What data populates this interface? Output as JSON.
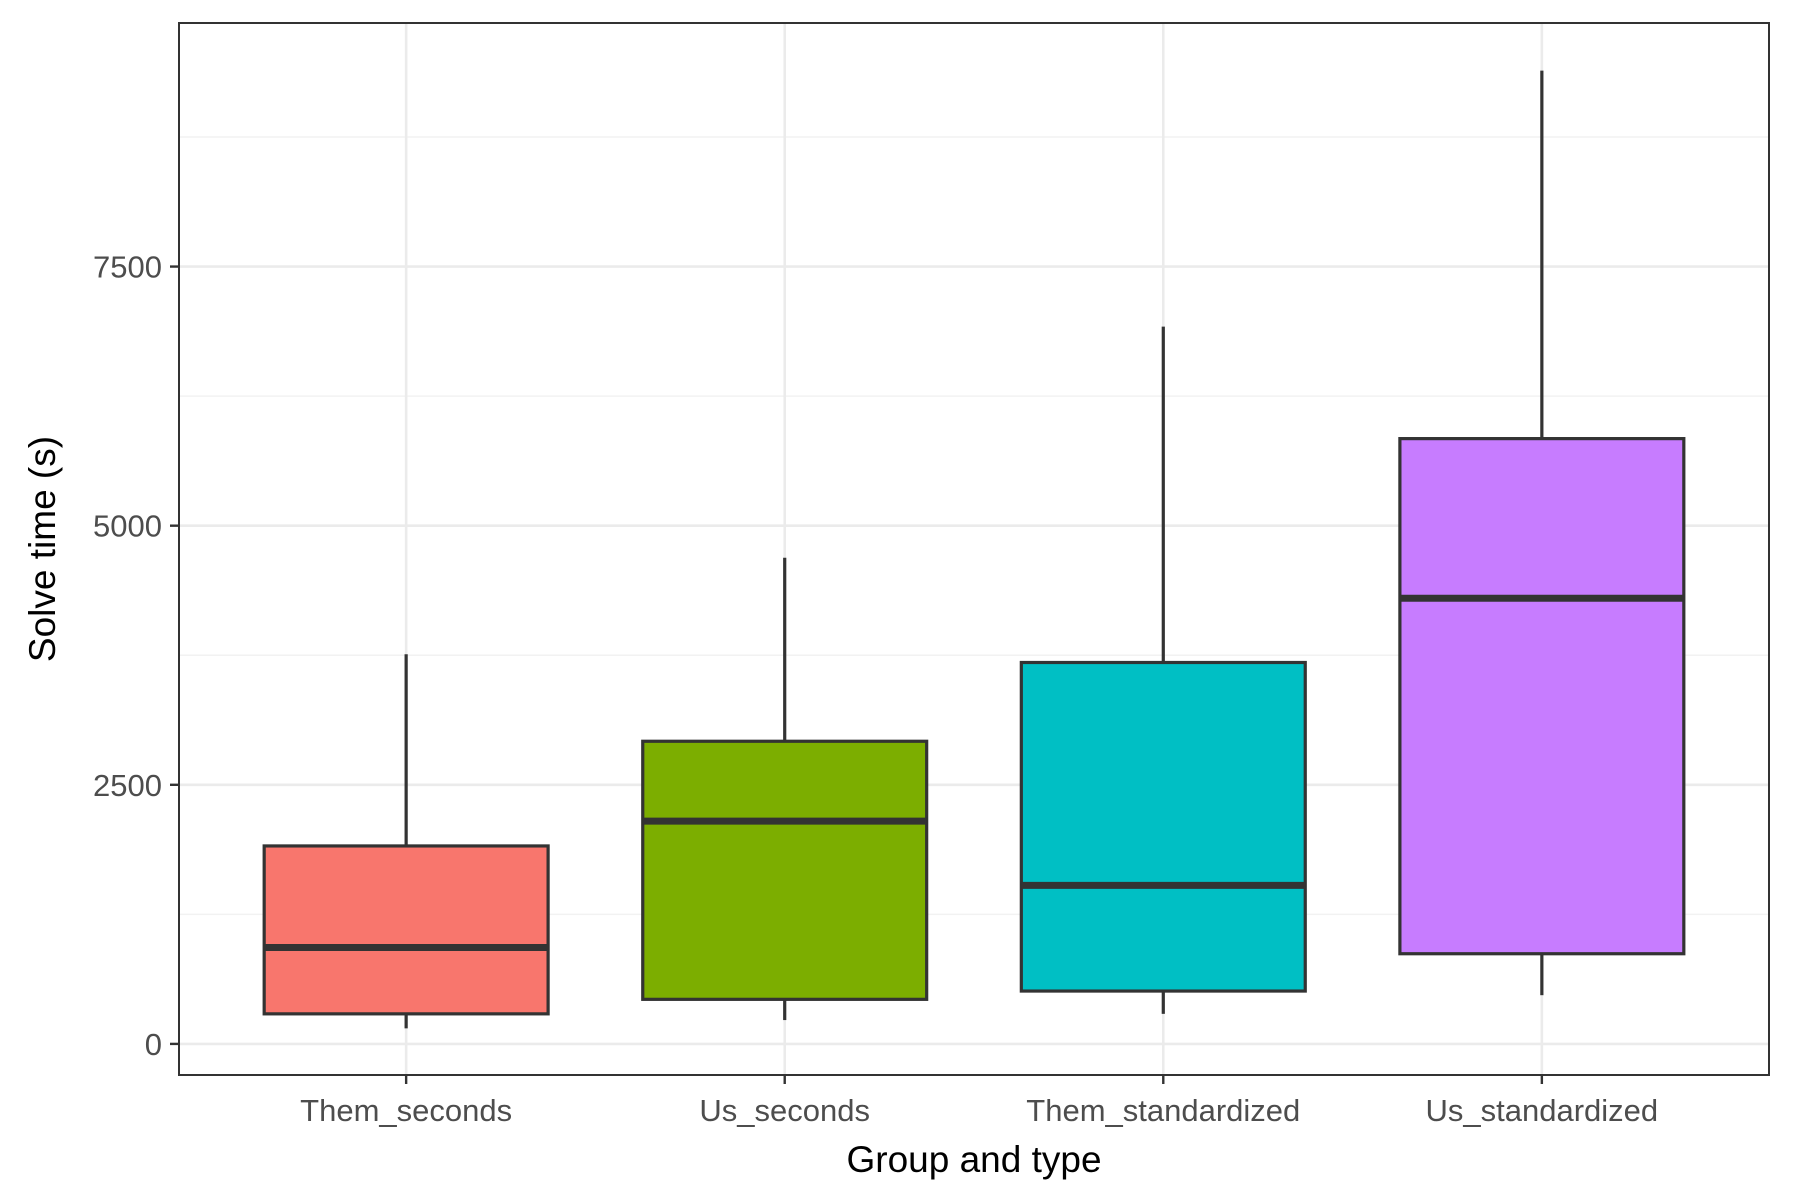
{
  "chart_data": {
    "type": "boxplot",
    "title": "",
    "xlabel": "Group and type",
    "ylabel": "Solve time (s)",
    "categories": [
      "Them_seconds",
      "Us_seconds",
      "Them_standardized",
      "Us_standardized"
    ],
    "yticks": [
      0,
      2500,
      5000,
      7500
    ],
    "ytick_labels": [
      "0",
      "2500",
      "5000",
      "7500"
    ],
    "ylim": [
      -300,
      9850
    ],
    "grid": true,
    "legend": "none",
    "boxes": [
      {
        "category": "Them_seconds",
        "whisker_low": 150,
        "q1": 290,
        "median": 930,
        "q3": 1910,
        "whisker_high": 3760,
        "fill": "#F8766D"
      },
      {
        "category": "Us_seconds",
        "whisker_low": 230,
        "q1": 430,
        "median": 2150,
        "q3": 2920,
        "whisker_high": 4690,
        "fill": "#7CAE00"
      },
      {
        "category": "Them_standardized",
        "whisker_low": 290,
        "q1": 510,
        "median": 1530,
        "q3": 3680,
        "whisker_high": 6920,
        "fill": "#00BFC4"
      },
      {
        "category": "Us_standardized",
        "whisker_low": 470,
        "q1": 870,
        "median": 4300,
        "q3": 5840,
        "whisker_high": 9390,
        "fill": "#C77CFF"
      }
    ],
    "colors": {
      "panel_border": "#333333",
      "grid_major": "#ebebeb",
      "grid_minor": "#f2f2f2",
      "box_outline": "#333333"
    }
  }
}
